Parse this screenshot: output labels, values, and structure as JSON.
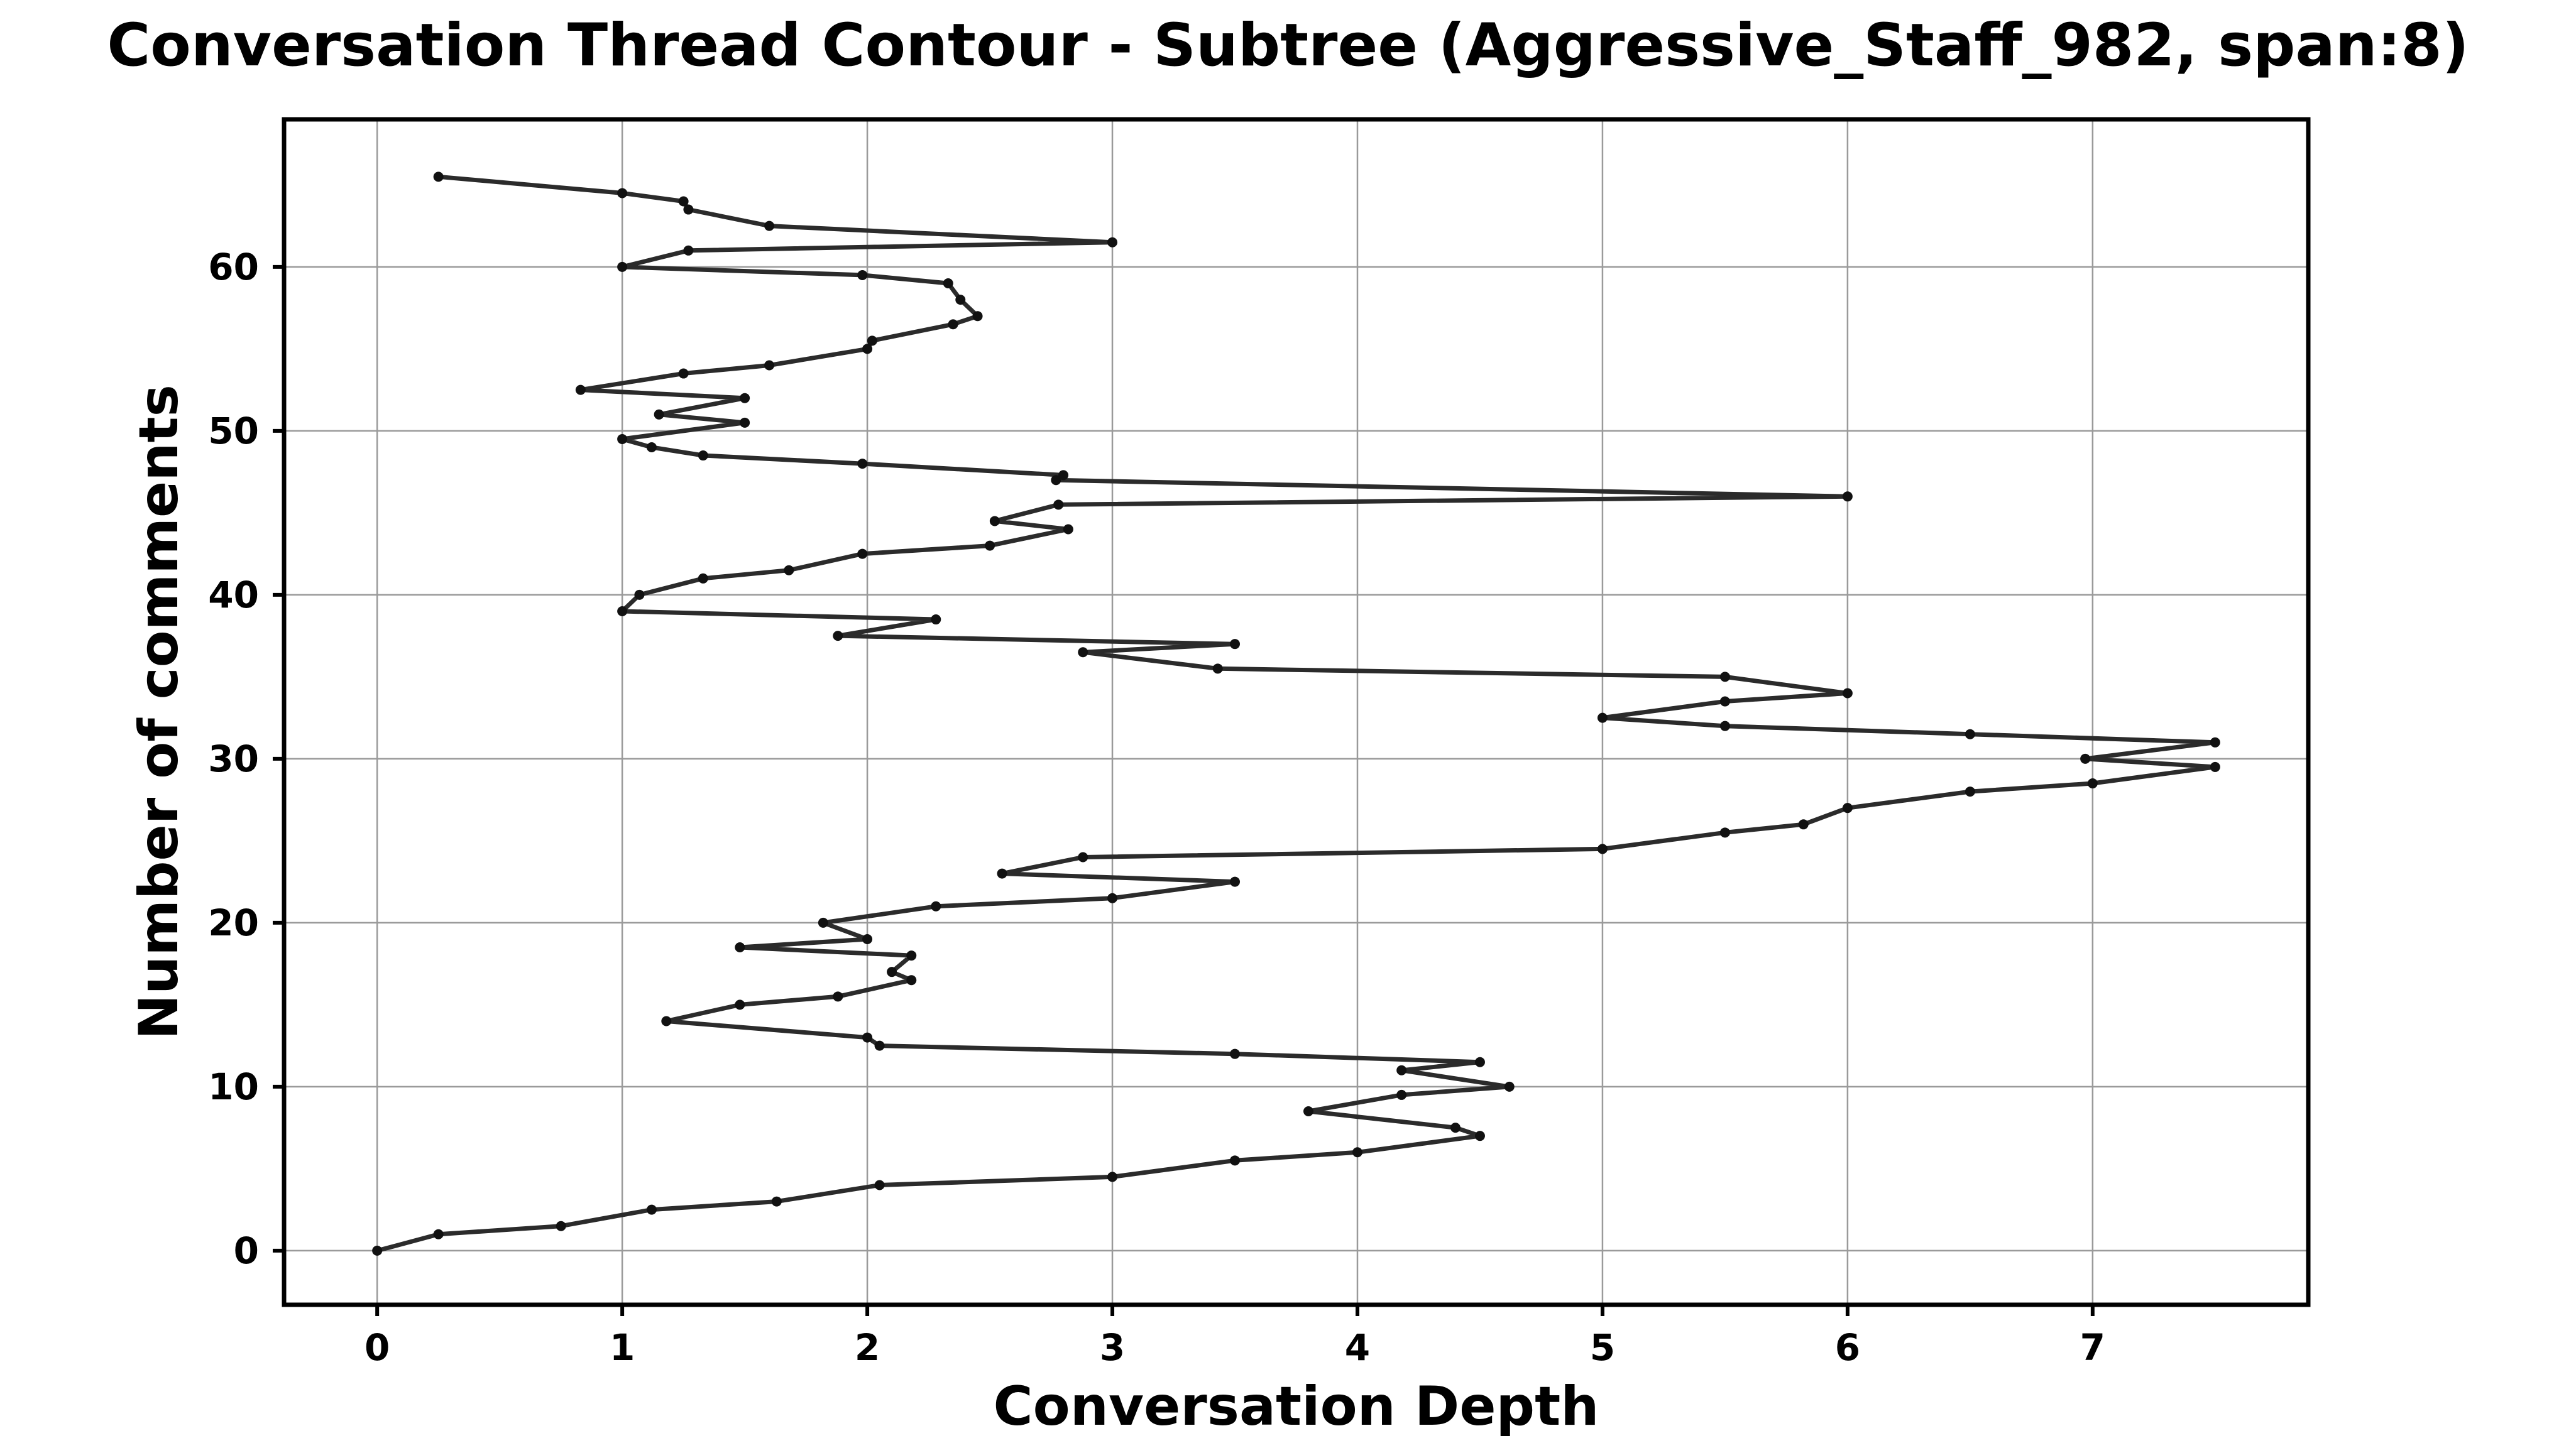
{
  "chart_data": {
    "type": "line",
    "title": "Conversation Thread Contour  - Subtree (Aggressive_Staff_982, span:8)",
    "xlabel": "Conversation Depth",
    "ylabel": "Number of comments",
    "xlim": [
      -0.38,
      7.88
    ],
    "ylim": [
      -3.3,
      69.0
    ],
    "xticks": [
      0,
      1,
      2,
      3,
      4,
      5,
      6,
      7
    ],
    "yticks": [
      0,
      10,
      20,
      30,
      40,
      50,
      60
    ],
    "grid": true,
    "line_color": "#2b2b2b",
    "series": [
      {
        "points": [
          [
            0,
            0
          ],
          [
            0.25,
            1
          ],
          [
            0.75,
            1.5
          ],
          [
            1.12,
            2.5
          ],
          [
            1.63,
            3
          ],
          [
            2.05,
            4
          ],
          [
            3.0,
            4.5
          ],
          [
            3.5,
            5.5
          ],
          [
            4.0,
            6
          ],
          [
            4.5,
            7
          ],
          [
            4.4,
            7.5
          ],
          [
            3.8,
            8.5
          ],
          [
            4.18,
            9.5
          ],
          [
            4.62,
            10
          ],
          [
            4.18,
            11
          ],
          [
            4.5,
            11.5
          ],
          [
            3.5,
            12
          ],
          [
            2.05,
            12.5
          ],
          [
            2.0,
            13
          ],
          [
            1.18,
            14
          ],
          [
            1.48,
            15
          ],
          [
            1.88,
            15.5
          ],
          [
            2.18,
            16.5
          ],
          [
            2.1,
            17
          ],
          [
            2.18,
            18
          ],
          [
            1.48,
            18.5
          ],
          [
            2.0,
            19
          ],
          [
            1.82,
            20
          ],
          [
            2.28,
            21
          ],
          [
            3.0,
            21.5
          ],
          [
            3.5,
            22.5
          ],
          [
            2.55,
            23
          ],
          [
            2.88,
            24
          ],
          [
            5.0,
            24.5
          ],
          [
            5.5,
            25.5
          ],
          [
            5.82,
            26
          ],
          [
            6.0,
            27
          ],
          [
            6.5,
            28
          ],
          [
            7.0,
            28.5
          ],
          [
            7.5,
            29.5
          ],
          [
            6.97,
            30
          ],
          [
            7.5,
            31
          ],
          [
            6.5,
            31.5
          ],
          [
            5.5,
            32
          ],
          [
            5.0,
            32.5
          ],
          [
            5.5,
            33.5
          ],
          [
            6.0,
            34
          ],
          [
            5.5,
            35
          ],
          [
            3.43,
            35.5
          ],
          [
            2.88,
            36.5
          ],
          [
            3.5,
            37
          ],
          [
            1.88,
            37.5
          ],
          [
            2.28,
            38.5
          ],
          [
            1.0,
            39
          ],
          [
            1.07,
            40
          ],
          [
            1.33,
            41
          ],
          [
            1.68,
            41.5
          ],
          [
            1.98,
            42.5
          ],
          [
            2.5,
            43
          ],
          [
            2.82,
            44
          ],
          [
            2.52,
            44.5
          ],
          [
            2.78,
            45.5
          ],
          [
            6.0,
            46
          ],
          [
            2.77,
            47
          ],
          [
            2.8,
            47.3
          ],
          [
            1.98,
            48
          ],
          [
            1.33,
            48.5
          ],
          [
            1.12,
            49
          ],
          [
            1.0,
            49.5
          ],
          [
            1.5,
            50.5
          ],
          [
            1.15,
            51
          ],
          [
            1.5,
            52
          ],
          [
            0.83,
            52.5
          ],
          [
            1.25,
            53.5
          ],
          [
            1.6,
            54
          ],
          [
            2.0,
            55
          ],
          [
            2.02,
            55.5
          ],
          [
            2.35,
            56.5
          ],
          [
            2.45,
            57
          ],
          [
            2.38,
            58
          ],
          [
            2.33,
            59
          ],
          [
            1.98,
            59.5
          ],
          [
            1.0,
            60
          ],
          [
            1.27,
            61
          ],
          [
            3.0,
            61.5
          ],
          [
            1.6,
            62.5
          ],
          [
            1.27,
            63.5
          ],
          [
            1.25,
            64
          ],
          [
            1.0,
            64.5
          ],
          [
            0.25,
            65.5
          ]
        ]
      }
    ]
  }
}
